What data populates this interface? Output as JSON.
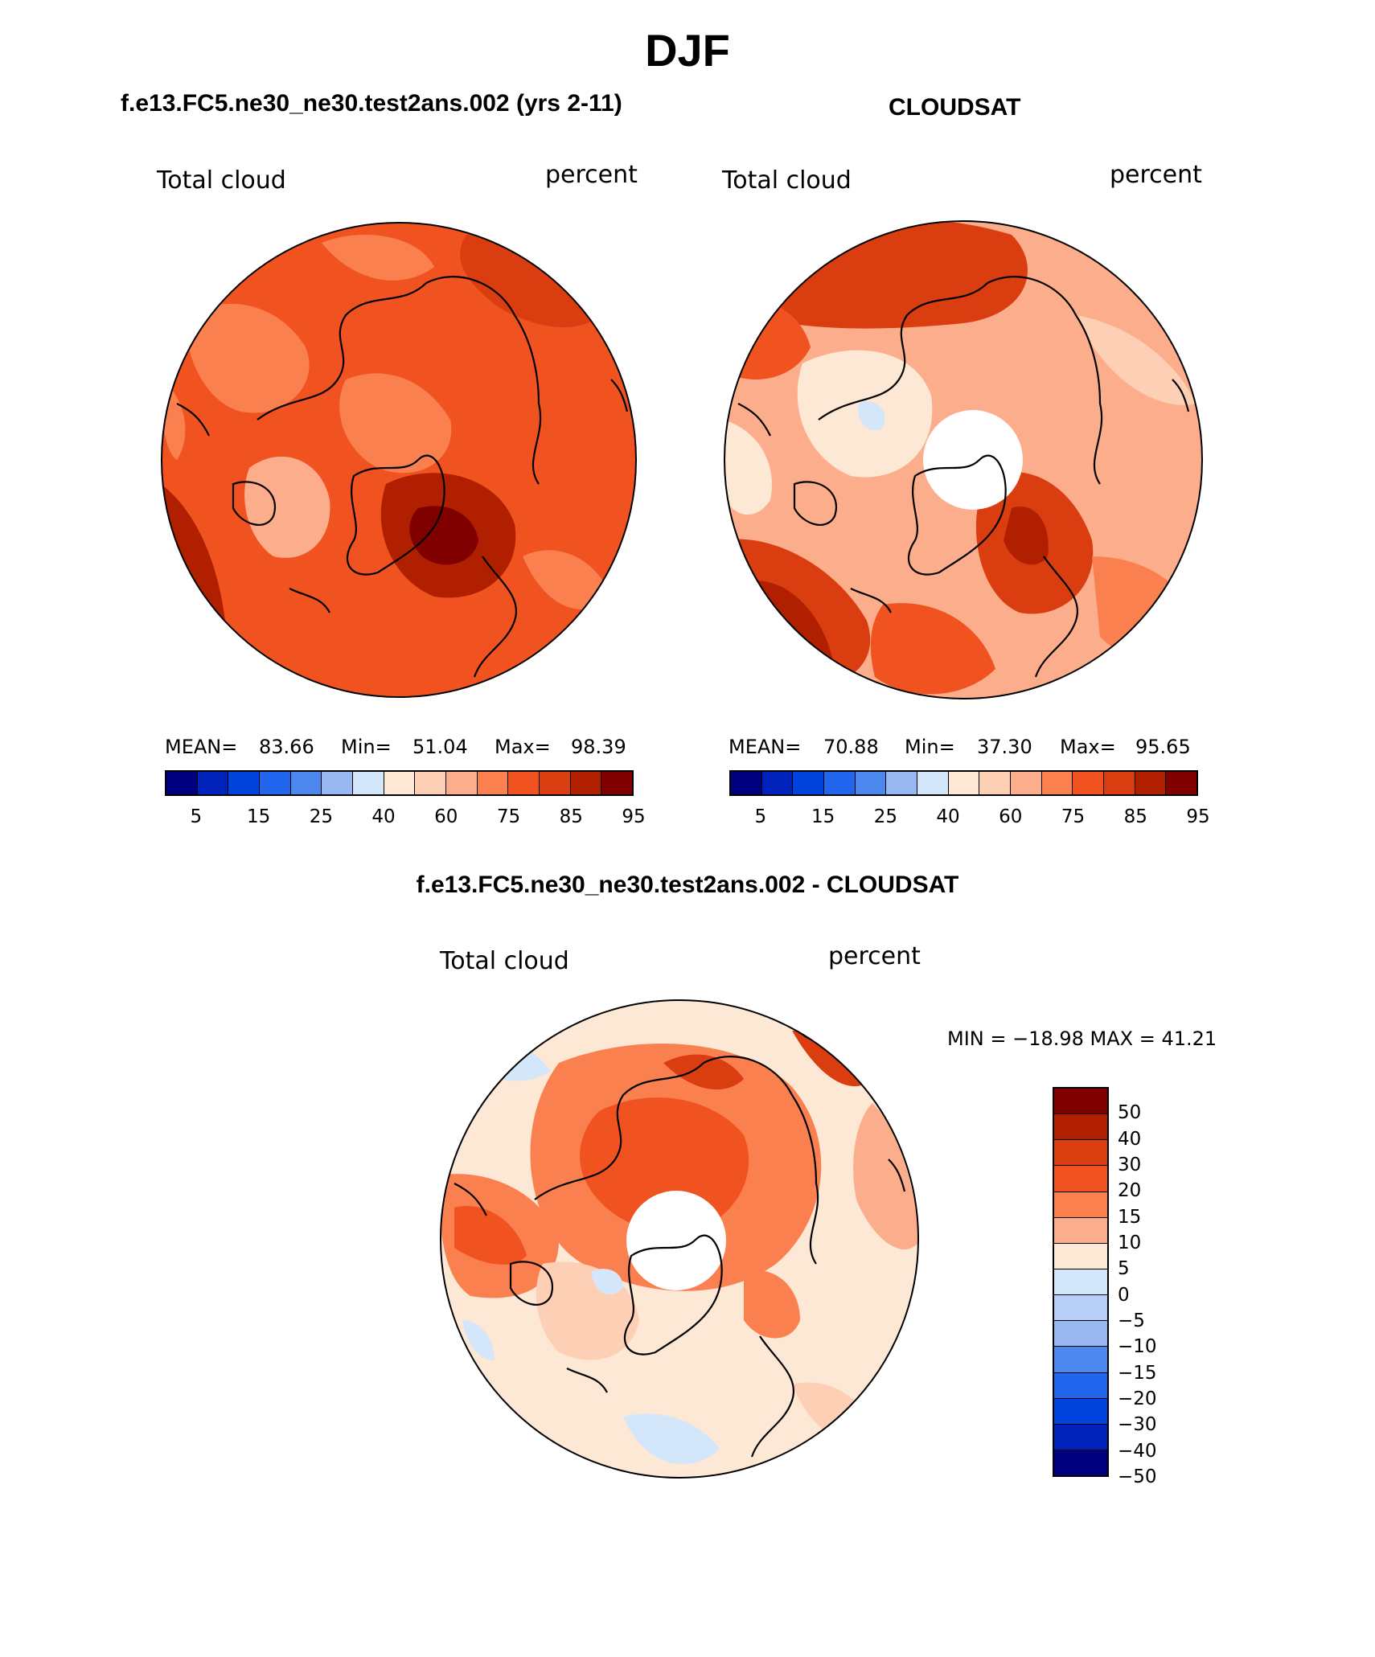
{
  "title": "DJF",
  "panels": [
    {
      "id": "model",
      "title": "f.e13.FC5.ne30_ne30.test2ans.002 (yrs 2-11)",
      "left_label": "Total cloud",
      "right_label": "percent",
      "mean_label": "MEAN=",
      "mean": "83.66",
      "min_label": "Min=",
      "min": "51.04",
      "max_label": "Max=",
      "max": "98.39"
    },
    {
      "id": "obs",
      "title": "CLOUDSAT",
      "left_label": "Total cloud",
      "right_label": "percent",
      "mean_label": "MEAN=",
      "mean": "70.88",
      "min_label": "Min=",
      "min": "37.30",
      "max_label": "Max=",
      "max": "95.65"
    }
  ],
  "diff_panel": {
    "title": "f.e13.FC5.ne30_ne30.test2ans.002 - CLOUDSAT",
    "left_label": "Total cloud",
    "right_label": "percent",
    "minmax": "MIN = −18.98 MAX =   41.21"
  },
  "colorbar_main": {
    "colors": [
      "#00007f",
      "#0022bb",
      "#0044dd",
      "#2266ee",
      "#4d88ee",
      "#99b8f2",
      "#d4e6f9",
      "#fde8d6",
      "#fdd0b5",
      "#fcae8c",
      "#fb8050",
      "#f0531f",
      "#d93d10",
      "#b02000",
      "#800000"
    ],
    "ticks": [
      "5",
      "15",
      "25",
      "40",
      "60",
      "75",
      "85",
      "95"
    ]
  },
  "colorbar_diff": {
    "colors": [
      "#800000",
      "#b02000",
      "#d93d10",
      "#f0531f",
      "#fb8050",
      "#fcae8c",
      "#fde8d6",
      "#d4e6f9",
      "#b8d0f7",
      "#99b8f2",
      "#4d88ee",
      "#2266ee",
      "#0044dd",
      "#0022bb",
      "#00007f"
    ],
    "ticks": [
      "50",
      "40",
      "30",
      "20",
      "15",
      "10",
      "5",
      "0",
      "−5",
      "−10",
      "−15",
      "−20",
      "−30",
      "−40",
      "−50"
    ]
  }
}
